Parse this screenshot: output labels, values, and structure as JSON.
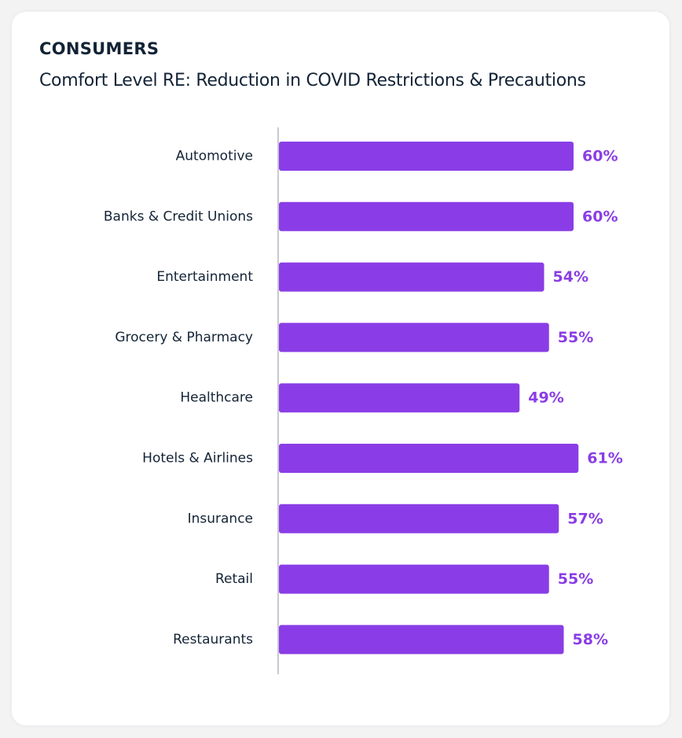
{
  "header": {
    "title": "CONSUMERS",
    "subtitle": "Comfort Level RE: Reduction in COVID Restrictions & Precautions"
  },
  "colors": {
    "bar": "#8a3de6",
    "value_label": "#8a3de6",
    "axis": "#c9c9cf",
    "text": "#132336"
  },
  "chart_data": {
    "type": "bar",
    "orientation": "horizontal",
    "title": "CONSUMERS",
    "subtitle": "Comfort Level RE: Reduction in COVID Restrictions & Precautions",
    "categories": [
      "Automotive",
      "Banks & Credit Unions",
      "Entertainment",
      "Grocery & Pharmacy",
      "Healthcare",
      "Hotels & Airlines",
      "Insurance",
      "Retail",
      "Restaurants"
    ],
    "values": [
      60,
      60,
      54,
      55,
      49,
      61,
      57,
      55,
      58
    ],
    "value_labels": [
      "60%",
      "60%",
      "54%",
      "55%",
      "49%",
      "61%",
      "57%",
      "55%",
      "58%"
    ],
    "xlim": [
      0,
      100
    ],
    "grid": false,
    "legend": "none"
  }
}
